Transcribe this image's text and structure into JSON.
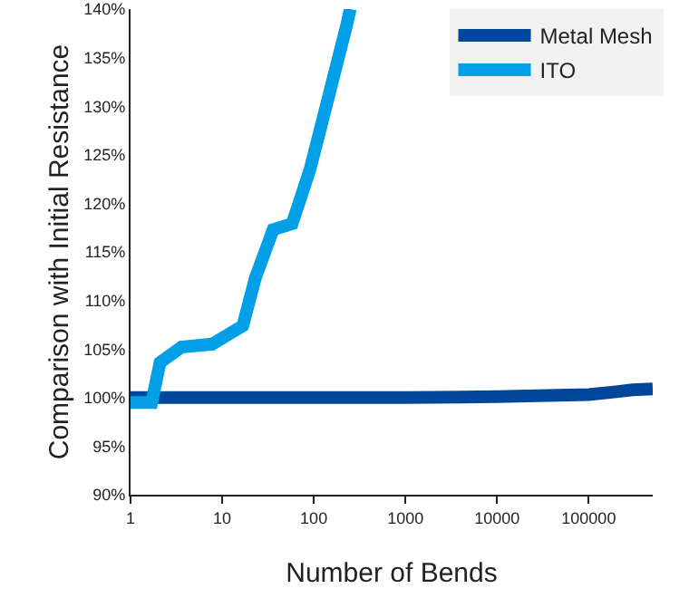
{
  "chart_data": {
    "type": "line",
    "xlabel": "Number of Bends",
    "ylabel": "Comparison with Initial Resistance",
    "log": "x",
    "grid": false,
    "legend": "top right",
    "marker": "none",
    "line_style": "solid",
    "xlim": [
      1,
      500000
    ],
    "xticks": [
      1,
      10,
      100,
      1000,
      10000,
      100000
    ],
    "ylim": [
      90,
      140
    ],
    "yticks": [
      {
        "value": 90,
        "label": "90%"
      },
      {
        "value": 95,
        "label": "95%"
      },
      {
        "value": 100,
        "label": "100%"
      },
      {
        "value": 105,
        "label": "105%"
      },
      {
        "value": 110,
        "label": "110%"
      },
      {
        "value": 115,
        "label": "115%"
      },
      {
        "value": 120,
        "label": "120%"
      },
      {
        "value": 125,
        "label": "125%"
      },
      {
        "value": 130,
        "label": "130%"
      },
      {
        "value": 135,
        "label": "135%"
      },
      {
        "value": 140,
        "label": "140%"
      }
    ],
    "series": [
      {
        "name": "Metal Mesh",
        "color": "#00469b",
        "x": [
          1,
          10,
          100,
          1000,
          10000,
          100000,
          200000,
          300000,
          500000
        ],
        "values": [
          100,
          100,
          100,
          100,
          100.1,
          100.3,
          100.6,
          100.8,
          100.9
        ]
      },
      {
        "name": "ITO",
        "color": "#009fe8",
        "x": [
          1,
          1.7,
          2.1,
          3.6,
          7.8,
          16.8,
          23,
          36,
          58,
          91,
          145,
          229,
          250
        ],
        "values": [
          99.5,
          99.5,
          103.6,
          105.2,
          105.5,
          107.4,
          112.3,
          117.3,
          117.9,
          123.5,
          131,
          138.4,
          140
        ]
      }
    ]
  }
}
